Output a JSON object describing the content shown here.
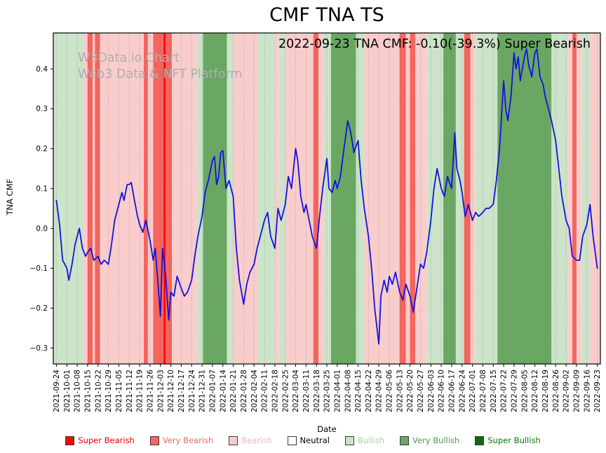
{
  "title": "CMF TNA TS",
  "annotation": "2022-09-23 TNA CMF: -0.10(-39.3%) Super Bearish",
  "watermark": {
    "line1": "W3Data.io Chart",
    "line2": "Web3 Data & NFT Platform"
  },
  "chart_data": {
    "type": "line",
    "title": "CMF TNA TS",
    "xlabel": "Date",
    "ylabel": "TNA CMF",
    "ylim": [
      -0.34,
      0.49
    ],
    "xlim": [
      -0.3,
      52.3
    ],
    "yticks": [
      0.4,
      0.3,
      0.2,
      0.1,
      0.0,
      -0.1,
      -0.2,
      -0.3
    ],
    "grid": "vertical-dotted",
    "line_color": "#1212e0",
    "xtick_labels": [
      "2021-09-24",
      "2021-10-01",
      "2021-10-08",
      "2021-10-15",
      "2021-10-22",
      "2021-10-29",
      "2021-11-05",
      "2021-11-12",
      "2021-11-19",
      "2021-11-26",
      "2021-12-03",
      "2021-12-10",
      "2021-12-17",
      "2021-12-24",
      "2021-12-31",
      "2022-01-07",
      "2022-01-14",
      "2022-01-21",
      "2022-01-28",
      "2022-02-04",
      "2022-02-11",
      "2022-02-18",
      "2022-02-25",
      "2022-03-04",
      "2022-03-11",
      "2022-03-18",
      "2022-03-25",
      "2022-04-01",
      "2022-04-08",
      "2022-04-15",
      "2022-04-22",
      "2022-04-29",
      "2022-05-06",
      "2022-05-13",
      "2022-05-20",
      "2022-05-27",
      "2022-06-03",
      "2022-06-10",
      "2022-06-17",
      "2022-06-24",
      "2022-07-01",
      "2022-07-08",
      "2022-07-15",
      "2022-07-22",
      "2022-07-29",
      "2022-08-05",
      "2022-08-12",
      "2022-08-19",
      "2022-08-26",
      "2022-09-02",
      "2022-09-09",
      "2022-09-16",
      "2022-09-23"
    ],
    "levels": {
      "Super Bearish": "#ff0000",
      "Very Bearish": "#f4655e",
      "Bearish": "#f9cdcb",
      "Neutral": "#ffffff",
      "Bullish": "#cce4c9",
      "Very Bullish": "#6aa763",
      "Super Bullish": "#0a6d0a"
    },
    "bands": [
      [
        -0.3,
        2.6,
        "Bullish"
      ],
      [
        2.6,
        3.0,
        "Bearish"
      ],
      [
        3.0,
        3.5,
        "Very Bearish"
      ],
      [
        3.5,
        3.7,
        "Bearish"
      ],
      [
        3.7,
        4.2,
        "Very Bearish"
      ],
      [
        4.2,
        8.4,
        "Bearish"
      ],
      [
        8.4,
        8.8,
        "Very Bearish"
      ],
      [
        8.8,
        9.3,
        "Bearish"
      ],
      [
        9.3,
        10.3,
        "Very Bearish"
      ],
      [
        10.3,
        10.5,
        "Super Bearish"
      ],
      [
        10.5,
        11.1,
        "Very Bearish"
      ],
      [
        11.1,
        13.5,
        "Bearish"
      ],
      [
        13.5,
        14.1,
        "Bullish"
      ],
      [
        14.1,
        16.4,
        "Very Bullish"
      ],
      [
        16.4,
        17.0,
        "Bullish"
      ],
      [
        17.0,
        19.4,
        "Bearish"
      ],
      [
        19.4,
        21.0,
        "Bullish"
      ],
      [
        21.0,
        21.4,
        "Bearish"
      ],
      [
        21.4,
        22.0,
        "Bullish"
      ],
      [
        22.0,
        24.7,
        "Bearish"
      ],
      [
        24.7,
        25.2,
        "Very Bearish"
      ],
      [
        25.2,
        25.7,
        "Bearish"
      ],
      [
        25.7,
        26.4,
        "Bullish"
      ],
      [
        26.4,
        28.8,
        "Very Bullish"
      ],
      [
        28.8,
        29.6,
        "Bullish"
      ],
      [
        29.6,
        33.0,
        "Bearish"
      ],
      [
        33.0,
        33.6,
        "Very Bearish"
      ],
      [
        33.6,
        34.0,
        "Bearish"
      ],
      [
        34.0,
        34.5,
        "Very Bearish"
      ],
      [
        34.5,
        35.6,
        "Bearish"
      ],
      [
        35.6,
        37.2,
        "Bullish"
      ],
      [
        37.2,
        38.4,
        "Very Bullish"
      ],
      [
        38.4,
        39.2,
        "Bullish"
      ],
      [
        39.2,
        39.8,
        "Very Bearish"
      ],
      [
        39.8,
        40.3,
        "Bearish"
      ],
      [
        40.3,
        42.4,
        "Bullish"
      ],
      [
        42.4,
        47.6,
        "Very Bullish"
      ],
      [
        47.6,
        49.2,
        "Bullish"
      ],
      [
        49.2,
        49.6,
        "Bearish"
      ],
      [
        49.6,
        50.0,
        "Very Bearish"
      ],
      [
        50.0,
        50.5,
        "Bearish"
      ],
      [
        50.5,
        51.3,
        "Bullish"
      ],
      [
        51.3,
        52.3,
        "Bearish"
      ]
    ],
    "series": [
      {
        "name": "TNA CMF",
        "points": [
          [
            0,
            0.07
          ],
          [
            0.3,
            0.01
          ],
          [
            0.6,
            -0.08
          ],
          [
            1,
            -0.1
          ],
          [
            1.2,
            -0.13
          ],
          [
            1.5,
            -0.09
          ],
          [
            1.8,
            -0.04
          ],
          [
            2,
            -0.02
          ],
          [
            2.2,
            0.0
          ],
          [
            2.5,
            -0.05
          ],
          [
            2.8,
            -0.07
          ],
          [
            3,
            -0.06
          ],
          [
            3.3,
            -0.05
          ],
          [
            3.6,
            -0.08
          ],
          [
            4,
            -0.07
          ],
          [
            4.3,
            -0.09
          ],
          [
            4.6,
            -0.08
          ],
          [
            5,
            -0.09
          ],
          [
            5.3,
            -0.04
          ],
          [
            5.6,
            0.02
          ],
          [
            6,
            0.06
          ],
          [
            6.3,
            0.09
          ],
          [
            6.5,
            0.07
          ],
          [
            6.8,
            0.11
          ],
          [
            7,
            0.11
          ],
          [
            7.2,
            0.115
          ],
          [
            7.5,
            0.07
          ],
          [
            7.8,
            0.03
          ],
          [
            8,
            0.01
          ],
          [
            8.3,
            -0.01
          ],
          [
            8.6,
            0.02
          ],
          [
            9,
            -0.03
          ],
          [
            9.3,
            -0.08
          ],
          [
            9.5,
            -0.05
          ],
          [
            9.8,
            -0.15
          ],
          [
            10,
            -0.22
          ],
          [
            10.2,
            -0.05
          ],
          [
            10.5,
            -0.12
          ],
          [
            10.8,
            -0.23
          ],
          [
            11,
            -0.16
          ],
          [
            11.3,
            -0.17
          ],
          [
            11.6,
            -0.12
          ],
          [
            12,
            -0.15
          ],
          [
            12.3,
            -0.17
          ],
          [
            12.6,
            -0.16
          ],
          [
            13,
            -0.13
          ],
          [
            13.3,
            -0.07
          ],
          [
            13.6,
            -0.02
          ],
          [
            14,
            0.03
          ],
          [
            14.3,
            0.09
          ],
          [
            14.6,
            0.12
          ],
          [
            15,
            0.17
          ],
          [
            15.2,
            0.18
          ],
          [
            15.4,
            0.11
          ],
          [
            15.6,
            0.13
          ],
          [
            15.8,
            0.19
          ],
          [
            16,
            0.195
          ],
          [
            16.3,
            0.1
          ],
          [
            16.6,
            0.12
          ],
          [
            17,
            0.08
          ],
          [
            17.3,
            -0.05
          ],
          [
            17.6,
            -0.13
          ],
          [
            18,
            -0.19
          ],
          [
            18.3,
            -0.14
          ],
          [
            18.6,
            -0.11
          ],
          [
            19,
            -0.09
          ],
          [
            19.3,
            -0.05
          ],
          [
            19.6,
            -0.02
          ],
          [
            20,
            0.02
          ],
          [
            20.3,
            0.04
          ],
          [
            20.6,
            -0.02
          ],
          [
            21,
            -0.05
          ],
          [
            21.3,
            0.05
          ],
          [
            21.6,
            0.02
          ],
          [
            22,
            0.06
          ],
          [
            22.3,
            0.13
          ],
          [
            22.6,
            0.1
          ],
          [
            23,
            0.2
          ],
          [
            23.2,
            0.17
          ],
          [
            23.5,
            0.08
          ],
          [
            23.8,
            0.04
          ],
          [
            24,
            0.06
          ],
          [
            24.3,
            0.02
          ],
          [
            24.6,
            -0.02
          ],
          [
            25,
            -0.05
          ],
          [
            25.3,
            0.03
          ],
          [
            25.6,
            0.1
          ],
          [
            26,
            0.175
          ],
          [
            26.2,
            0.1
          ],
          [
            26.5,
            0.09
          ],
          [
            26.8,
            0.12
          ],
          [
            27,
            0.1
          ],
          [
            27.3,
            0.13
          ],
          [
            27.6,
            0.19
          ],
          [
            28,
            0.27
          ],
          [
            28.3,
            0.24
          ],
          [
            28.6,
            0.19
          ],
          [
            29,
            0.22
          ],
          [
            29.3,
            0.12
          ],
          [
            29.6,
            0.05
          ],
          [
            30,
            -0.02
          ],
          [
            30.3,
            -0.1
          ],
          [
            30.6,
            -0.2
          ],
          [
            31,
            -0.29
          ],
          [
            31.2,
            -0.17
          ],
          [
            31.5,
            -0.13
          ],
          [
            31.8,
            -0.16
          ],
          [
            32,
            -0.12
          ],
          [
            32.3,
            -0.14
          ],
          [
            32.6,
            -0.11
          ],
          [
            33,
            -0.16
          ],
          [
            33.3,
            -0.18
          ],
          [
            33.6,
            -0.14
          ],
          [
            34,
            -0.17
          ],
          [
            34.3,
            -0.21
          ],
          [
            34.6,
            -0.16
          ],
          [
            35,
            -0.09
          ],
          [
            35.3,
            -0.1
          ],
          [
            35.6,
            -0.06
          ],
          [
            36,
            0.02
          ],
          [
            36.3,
            0.1
          ],
          [
            36.6,
            0.15
          ],
          [
            37,
            0.1
          ],
          [
            37.3,
            0.08
          ],
          [
            37.6,
            0.13
          ],
          [
            38,
            0.1
          ],
          [
            38.3,
            0.24
          ],
          [
            38.5,
            0.15
          ],
          [
            38.8,
            0.12
          ],
          [
            39,
            0.09
          ],
          [
            39.3,
            0.03
          ],
          [
            39.6,
            0.06
          ],
          [
            40,
            0.02
          ],
          [
            40.3,
            0.04
          ],
          [
            40.6,
            0.03
          ],
          [
            41,
            0.04
          ],
          [
            41.3,
            0.05
          ],
          [
            41.6,
            0.05
          ],
          [
            42,
            0.06
          ],
          [
            42.3,
            0.12
          ],
          [
            42.6,
            0.2
          ],
          [
            43,
            0.37
          ],
          [
            43.2,
            0.3
          ],
          [
            43.4,
            0.27
          ],
          [
            43.7,
            0.33
          ],
          [
            44,
            0.44
          ],
          [
            44.2,
            0.4
          ],
          [
            44.4,
            0.43
          ],
          [
            44.6,
            0.37
          ],
          [
            45,
            0.43
          ],
          [
            45.2,
            0.45
          ],
          [
            45.4,
            0.41
          ],
          [
            45.7,
            0.38
          ],
          [
            46,
            0.44
          ],
          [
            46.2,
            0.45
          ],
          [
            46.5,
            0.38
          ],
          [
            46.8,
            0.36
          ],
          [
            47,
            0.33
          ],
          [
            47.3,
            0.3
          ],
          [
            47.6,
            0.27
          ],
          [
            48,
            0.22
          ],
          [
            48.3,
            0.15
          ],
          [
            48.6,
            0.08
          ],
          [
            49,
            0.02
          ],
          [
            49.3,
            0.0
          ],
          [
            49.6,
            -0.07
          ],
          [
            50,
            -0.08
          ],
          [
            50.3,
            -0.08
          ],
          [
            50.6,
            -0.02
          ],
          [
            51,
            0.01
          ],
          [
            51.3,
            0.06
          ],
          [
            51.6,
            -0.02
          ],
          [
            52,
            -0.1
          ]
        ]
      }
    ]
  },
  "legend": {
    "items": [
      {
        "label": "Super Bearish",
        "swatch": "#ff0000",
        "text": "#e80000"
      },
      {
        "label": "Very Bearish",
        "swatch": "#f4655e",
        "text": "#f4655e"
      },
      {
        "label": "Bearish",
        "swatch": "#f9cdcb",
        "text": "#f0b6b3"
      },
      {
        "label": "Neutral",
        "swatch": "#ffffff",
        "text": "#000000"
      },
      {
        "label": "Bullish",
        "swatch": "#cce4c9",
        "text": "#a8cea3"
      },
      {
        "label": "Very Bullish",
        "swatch": "#6aa763",
        "text": "#4f9a47"
      },
      {
        "label": "Super Bullish",
        "swatch": "#0a6d0a",
        "text": "#067a06"
      }
    ]
  }
}
